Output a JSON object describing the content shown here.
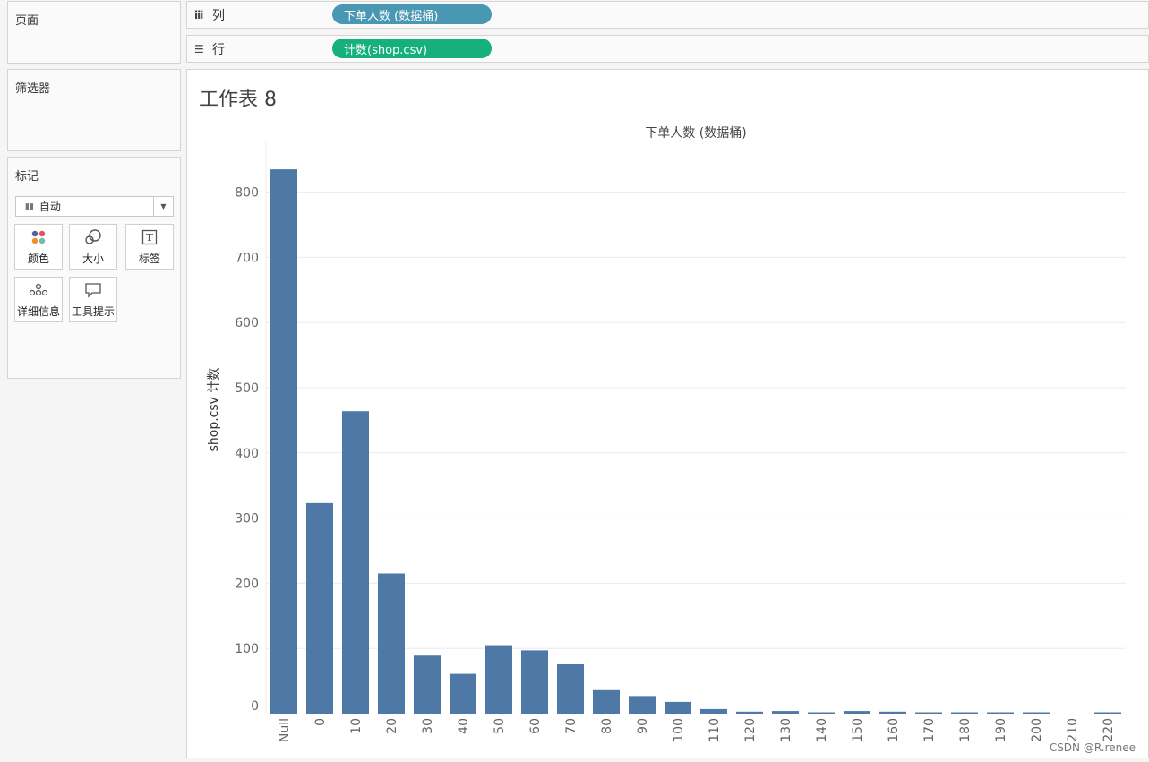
{
  "panels": {
    "pages": "页面",
    "filters": "筛选器",
    "marks": "标记"
  },
  "marks": {
    "type": "自动",
    "buttons": [
      {
        "label": "颜色",
        "icon": "color-icon"
      },
      {
        "label": "大小",
        "icon": "size-icon"
      },
      {
        "label": "标签",
        "icon": "label-icon"
      },
      {
        "label": "详细信息",
        "icon": "detail-icon"
      },
      {
        "label": "工具提示",
        "icon": "tooltip-icon"
      }
    ]
  },
  "shelves": {
    "columns": {
      "label": "列",
      "pill": "下单人数 (数据桶)",
      "color": "#4a97b3"
    },
    "rows": {
      "label": "行",
      "pill": "计数(shop.csv)",
      "color": "#15b07d"
    }
  },
  "sheet": {
    "title": "工作表 8"
  },
  "chart_data": {
    "type": "bar",
    "title": "下单人数 (数据桶)",
    "xlabel": "",
    "ylabel": "shop.csv 计数",
    "categories": [
      "Null",
      "0",
      "10",
      "20",
      "30",
      "40",
      "50",
      "60",
      "70",
      "80",
      "90",
      "100",
      "110",
      "120",
      "130",
      "140",
      "150",
      "160",
      "170",
      "180",
      "190",
      "200",
      "210",
      "220"
    ],
    "values": [
      835,
      323,
      464,
      215,
      89,
      61,
      105,
      97,
      76,
      36,
      27,
      18,
      7,
      3,
      4,
      2,
      4,
      3,
      1,
      1,
      1,
      1,
      0,
      1
    ],
    "ylim": [
      0,
      880
    ],
    "yticks": [
      0,
      100,
      200,
      300,
      400,
      500,
      600,
      700,
      800
    ],
    "bar_color": "#4e79a7",
    "grid": true
  },
  "watermark": "CSDN @R.renee"
}
